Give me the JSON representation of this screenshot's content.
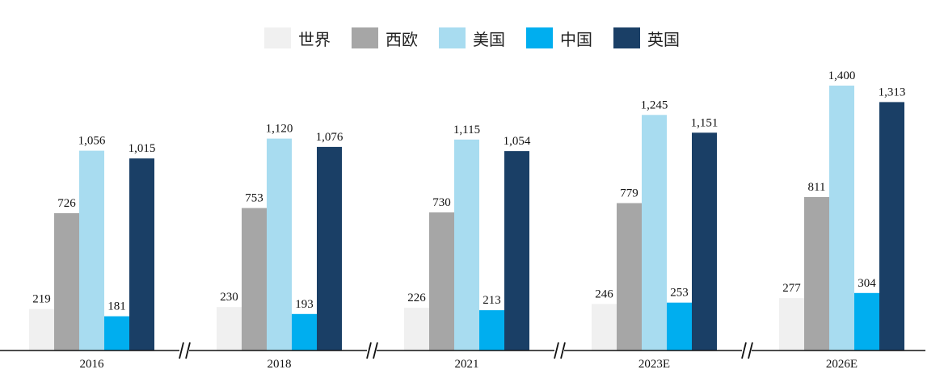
{
  "chart_data": {
    "type": "bar",
    "title": "",
    "xlabel": "",
    "ylabel": "",
    "categories": [
      "2016",
      "2018",
      "2021",
      "2023E",
      "2026E"
    ],
    "series": [
      {
        "name": "世界",
        "color": "#f0f0f0",
        "values": [
          219,
          230,
          226,
          246,
          277
        ]
      },
      {
        "name": "西欧",
        "color": "#a6a6a6",
        "values": [
          726,
          753,
          730,
          779,
          811
        ]
      },
      {
        "name": "美国",
        "color": "#a8dcf0",
        "values": [
          1056,
          1120,
          1115,
          1245,
          1400
        ]
      },
      {
        "name": "中国",
        "color": "#00aeef",
        "values": [
          181,
          193,
          213,
          253,
          304
        ]
      },
      {
        "name": "英国",
        "color": "#1a3f66",
        "values": [
          1015,
          1076,
          1054,
          1151,
          1313
        ]
      }
    ],
    "data_labels": [
      [
        "219",
        "726",
        "1,056",
        "181",
        "1,015"
      ],
      [
        "230",
        "753",
        "1,120",
        "193",
        "1,076"
      ],
      [
        "226",
        "730",
        "1,115",
        "213",
        "1,054"
      ],
      [
        "246",
        "779",
        "1,245",
        "253",
        "1,151"
      ],
      [
        "277",
        "811",
        "1,400",
        "304",
        "1,313"
      ]
    ],
    "ylim": [
      0,
      1400
    ],
    "grid": false,
    "legend": "top-center",
    "axis_breaks": true
  }
}
